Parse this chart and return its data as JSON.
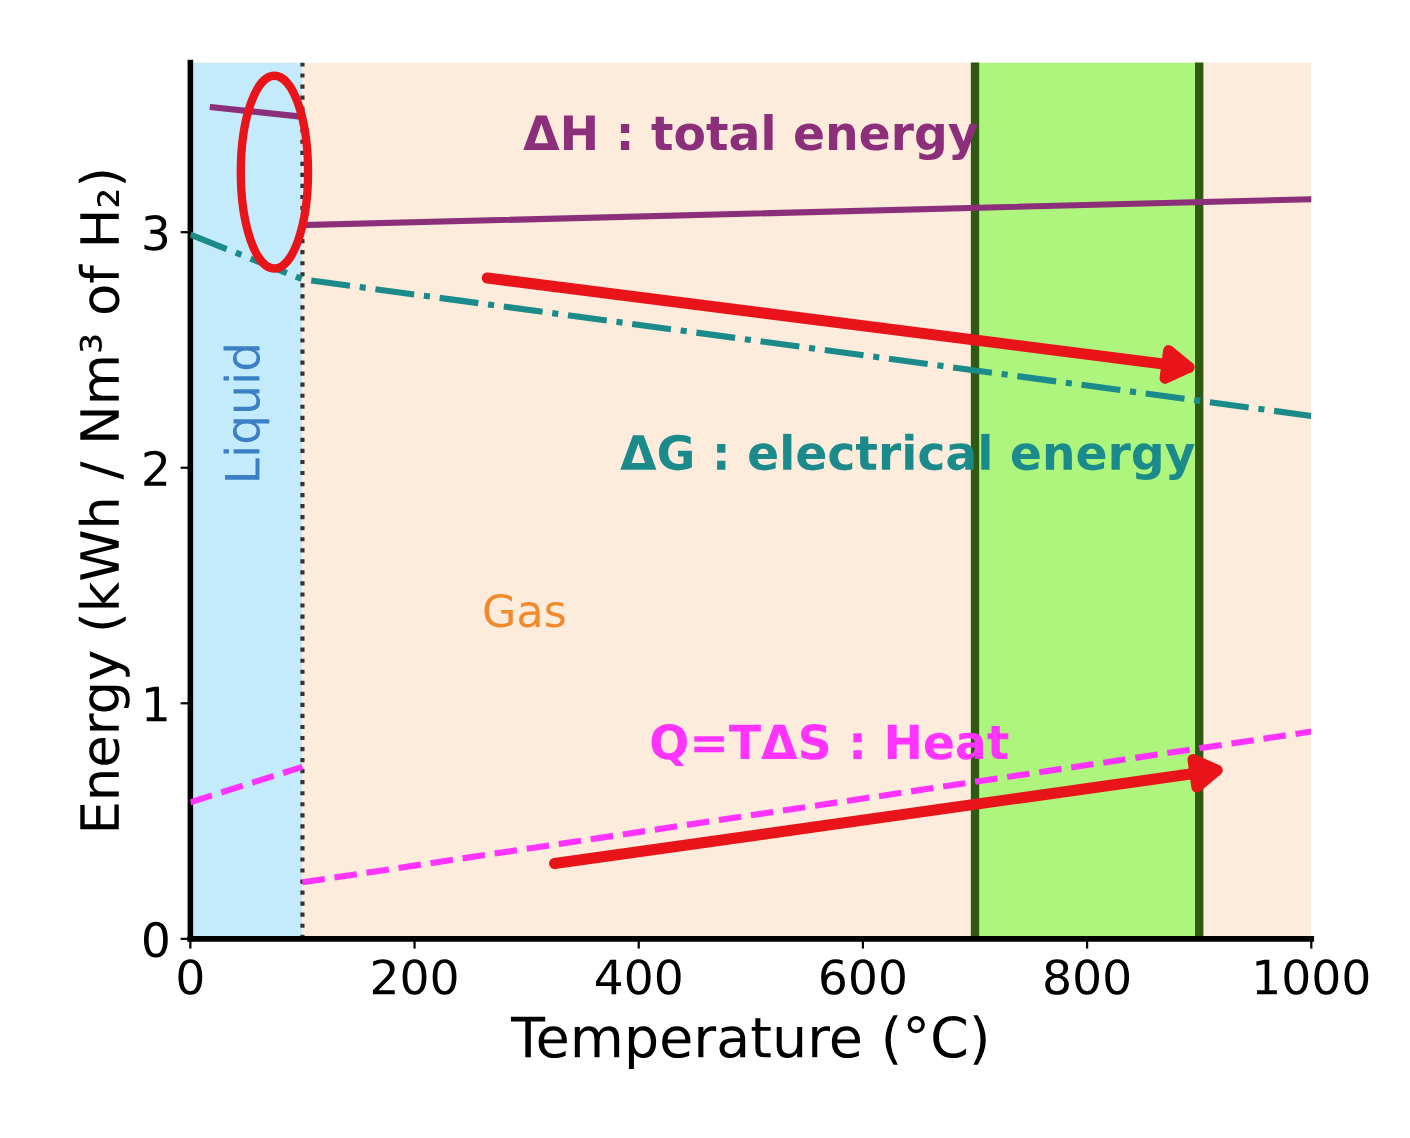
{
  "chart_data": {
    "type": "line",
    "xlabel": "Temperature (°C)",
    "ylabel": "Energy (kWh / Nm³ of H₂)",
    "xlim": [
      0,
      1000
    ],
    "ylim": [
      0,
      3.72
    ],
    "xticks": [
      0,
      200,
      400,
      600,
      800,
      1000
    ],
    "yticks": [
      0,
      1,
      2,
      3
    ],
    "grid": false,
    "legend": false,
    "series": [
      {
        "color": "#8b2f7a",
        "x": [
          20,
          100
        ],
        "values": [
          3.53,
          3.49
        ],
        "line_style": "solid"
      },
      {
        "color": "#8b2f7a",
        "x": [
          100,
          1000
        ],
        "values": [
          3.03,
          3.14
        ],
        "line_style": "solid"
      },
      {
        "color": "#1a8a8a",
        "x": [
          0,
          100,
          1000
        ],
        "values": [
          2.99,
          2.8,
          2.22
        ],
        "line_style": "dashdot"
      },
      {
        "color": "#ff33ff",
        "x": [
          0,
          100
        ],
        "values": [
          0.58,
          0.73
        ],
        "line_style": "dashed"
      },
      {
        "color": "#ff33ff",
        "x": [
          100,
          1000
        ],
        "values": [
          0.24,
          0.88
        ],
        "line_style": "dashed"
      }
    ],
    "bands": [
      {
        "axis": "x",
        "from": 0,
        "to": 100,
        "label": "Liquid",
        "color": "#c4ebfc"
      },
      {
        "axis": "x",
        "from": 100,
        "to": 1000,
        "label": "Gas",
        "color": "#fdebdc"
      },
      {
        "axis": "x",
        "from": 700,
        "to": 900,
        "label": null,
        "color": "#aef57d"
      }
    ],
    "ref_lines": [
      {
        "axis": "x",
        "value": 100,
        "label": null,
        "color": "#333333",
        "line_style": "dotted"
      },
      {
        "axis": "x",
        "value": 700,
        "label": null,
        "color": "#2e5a14",
        "line_style": "solid"
      },
      {
        "axis": "x",
        "value": 900,
        "label": null,
        "color": "#2e5a14",
        "line_style": "solid"
      }
    ],
    "annotations": [
      "ΔH : total energy",
      "ΔG : electrical energy",
      "Q=TΔS : Heat"
    ]
  }
}
